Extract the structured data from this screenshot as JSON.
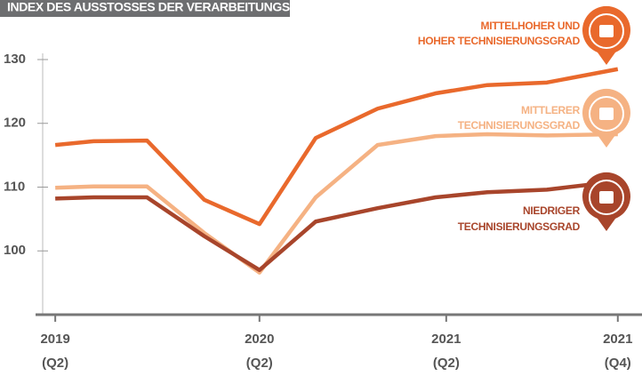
{
  "chart_data": {
    "type": "line",
    "title": "INDEX DES AUSSTOSSES DER VERARBEITUNGSINDUSTRIE",
    "x": [
      0,
      0.68,
      1.63,
      2.65,
      3.63,
      4.63,
      5.73,
      6.76,
      7.68,
      8.74,
      10
    ],
    "xlim": [
      -0.35,
      10.43
    ],
    "xticks": [
      {
        "value": 0,
        "label": [
          "2019",
          "(Q2)"
        ]
      },
      {
        "value": 3.63,
        "label": [
          "2020",
          "(Q2)"
        ]
      },
      {
        "value": 6.95,
        "label": [
          "2021",
          "(Q2)"
        ]
      },
      {
        "value": 10,
        "label": [
          "2021",
          "(Q4)"
        ]
      }
    ],
    "ylim": [
      90,
      130
    ],
    "yticks": [
      100,
      110,
      120,
      130
    ],
    "series": [
      {
        "name": [
          "MITTELHOHER UND",
          "HOHER TECHNISIERUNGSGRAD"
        ],
        "color": "#e9692c",
        "values": [
          116.6,
          117.2,
          117.3,
          108.0,
          104.2,
          117.7,
          122.3,
          124.7,
          126.0,
          126.4,
          128.5
        ]
      },
      {
        "name": [
          "MITTLERER",
          "TECHNISIERUNGSGRAD"
        ],
        "color": "#f5b283",
        "values": [
          109.9,
          110.1,
          110.1,
          102.8,
          96.6,
          108.4,
          116.6,
          118.0,
          118.3,
          118.1,
          118.3
        ]
      },
      {
        "name": [
          "NIEDRIGER",
          "TECHNISIERUNGSGRAD"
        ],
        "color": "#a8452b",
        "values": [
          108.2,
          108.4,
          108.4,
          102.3,
          97.0,
          104.6,
          106.7,
          108.4,
          109.2,
          109.6,
          110.9
        ]
      }
    ]
  }
}
